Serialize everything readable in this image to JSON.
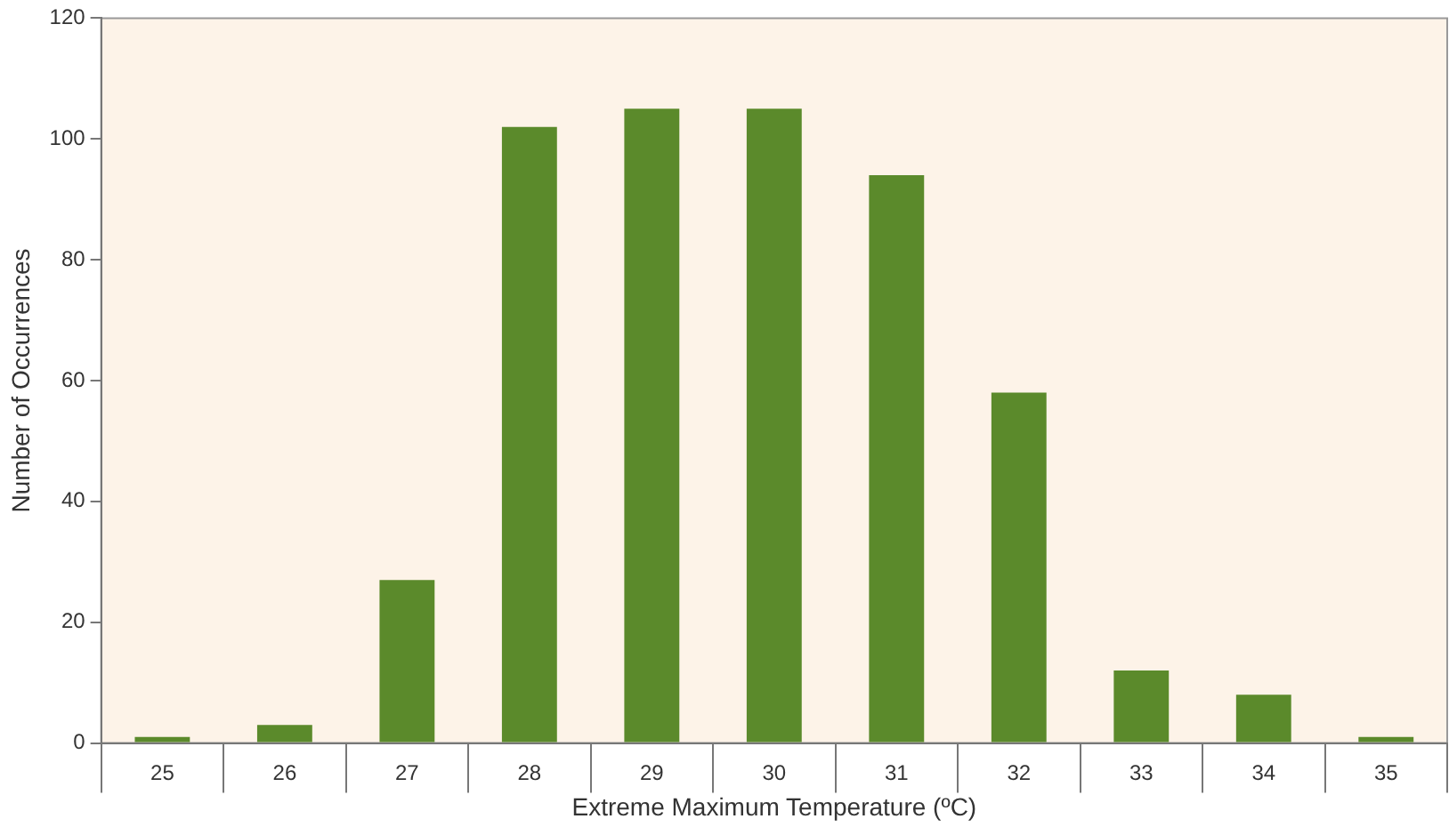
{
  "chart_data": {
    "type": "bar",
    "xlabel": "Extreme Maximum Temperature (ºC)",
    "ylabel": "Number of Occurrences",
    "categories": [
      "25",
      "26",
      "27",
      "28",
      "29",
      "30",
      "31",
      "32",
      "33",
      "34",
      "35"
    ],
    "values": [
      1,
      3,
      27,
      102,
      105,
      105,
      94,
      58,
      12,
      8,
      1
    ],
    "color": "#5b8a2b",
    "ylim": [
      0,
      120
    ],
    "yticks": [
      0,
      20,
      40,
      60,
      80,
      100,
      120
    ],
    "grid": false,
    "legend": false
  }
}
